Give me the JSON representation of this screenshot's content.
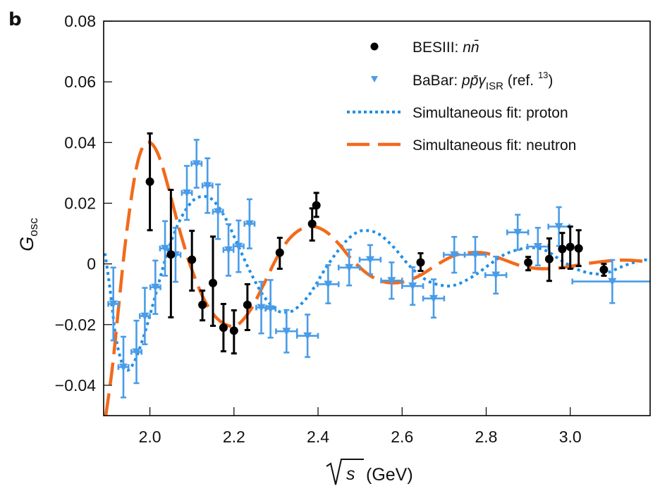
{
  "chart_data": {
    "type": "scatter",
    "panel_label": "b",
    "title": "",
    "xlabel": "√s (GeV)",
    "xlabel_parts": {
      "sqrt_symbol": "s",
      "unit": "(GeV)"
    },
    "ylabel": "G_osc",
    "ylabel_parts": {
      "main": "G",
      "sub": "osc"
    },
    "xlim": [
      1.89,
      3.19
    ],
    "ylim": [
      -0.05,
      0.08
    ],
    "xticks": [
      2.0,
      2.2,
      2.4,
      2.6,
      2.8,
      3.0
    ],
    "xtick_labels": [
      "2.0",
      "2.2",
      "2.4",
      "2.6",
      "2.8",
      "3.0"
    ],
    "yticks": [
      0.08,
      0.06,
      0.04,
      0.02,
      0,
      -0.02,
      -0.04
    ],
    "ytick_labels": [
      "0.08",
      "0.06",
      "0.04",
      "0.02",
      "0",
      "−0.02",
      "−0.04"
    ],
    "grid": false,
    "legend_position": "top-right",
    "colors": {
      "besiii": "#000000",
      "babar": "#4a9ce8",
      "proton_fit": "#1e8fe6",
      "neutron_fit": "#f26a1b"
    },
    "legend": [
      {
        "key": "besiii",
        "label": "BESIII: ",
        "italic": "nn̄",
        "marker": "circle"
      },
      {
        "key": "babar",
        "label": "BaBar: ",
        "italic": "pp̄γ",
        "sub": "ISR",
        "suffix": " (ref. ",
        "sup": "13",
        "suffix2": ")",
        "marker": "triangle-down"
      },
      {
        "key": "proton_fit",
        "label": "Simultaneous fit: proton",
        "marker": "dotted-line"
      },
      {
        "key": "neutron_fit",
        "label": "Simultaneous fit: neutron",
        "marker": "dashed-line"
      }
    ],
    "series": [
      {
        "name": "BESIII: nn̄",
        "kind": "points",
        "marker": "circle",
        "points": [
          {
            "x": 2.0,
            "y": 0.0271,
            "yerr_hi": 0.043,
            "yerr_lo": 0.0111
          },
          {
            "x": 2.05,
            "y": 0.0031,
            "yerr_hi": 0.0244,
            "yerr_lo": -0.0176
          },
          {
            "x": 2.1,
            "y": 0.0014,
            "yerr_hi": 0.0109,
            "yerr_lo": -0.0088
          },
          {
            "x": 2.125,
            "y": -0.0135,
            "yerr_hi": -0.0088,
            "yerr_lo": -0.0186
          },
          {
            "x": 2.15,
            "y": -0.0063,
            "yerr_hi": 0.009,
            "yerr_lo": -0.0204
          },
          {
            "x": 2.175,
            "y": -0.021,
            "yerr_hi": -0.0132,
            "yerr_lo": -0.0288
          },
          {
            "x": 2.2,
            "y": -0.022,
            "yerr_hi": -0.0153,
            "yerr_lo": -0.0295
          },
          {
            "x": 2.232,
            "y": -0.0135,
            "yerr_hi": -0.0067,
            "yerr_lo": -0.0218
          },
          {
            "x": 2.309,
            "y": 0.0037,
            "yerr_hi": 0.0086,
            "yerr_lo": -0.0016
          },
          {
            "x": 2.386,
            "y": 0.0132,
            "yerr_hi": 0.0183,
            "yerr_lo": 0.0077
          },
          {
            "x": 2.396,
            "y": 0.0193,
            "yerr_hi": 0.0234,
            "yerr_lo": 0.0155
          },
          {
            "x": 2.644,
            "y": 0.0005,
            "yerr_hi": 0.0035,
            "yerr_lo": -0.0023
          },
          {
            "x": 2.9,
            "y": 0.0005,
            "yerr_hi": 0.0023,
            "yerr_lo": -0.0021
          },
          {
            "x": 2.95,
            "y": 0.0016,
            "yerr_hi": 0.0084,
            "yerr_lo": -0.0056
          },
          {
            "x": 2.981,
            "y": 0.0049,
            "yerr_hi": 0.0102,
            "yerr_lo": -0.0014
          },
          {
            "x": 3.0,
            "y": 0.0056,
            "yerr_hi": 0.0123,
            "yerr_lo": -0.0016
          },
          {
            "x": 3.02,
            "y": 0.0051,
            "yerr_hi": 0.0111,
            "yerr_lo": -0.0007
          },
          {
            "x": 3.08,
            "y": -0.0019,
            "yerr_hi": 0.0,
            "yerr_lo": -0.0039
          }
        ]
      },
      {
        "name": "BaBar: pp̄γISR (ref. 13)",
        "kind": "points",
        "marker": "triangle-down",
        "points": [
          {
            "x": 1.913,
            "y": -0.0132,
            "xerr": 0.012,
            "yerr": 0.012
          },
          {
            "x": 1.937,
            "y": -0.034,
            "xerr": 0.012,
            "yerr": 0.01
          },
          {
            "x": 1.968,
            "y": -0.029,
            "xerr": 0.012,
            "yerr": 0.0103
          },
          {
            "x": 1.988,
            "y": -0.0172,
            "xerr": 0.012,
            "yerr": 0.0093
          },
          {
            "x": 2.013,
            "y": -0.0077,
            "xerr": 0.012,
            "yerr": 0.0088
          },
          {
            "x": 2.036,
            "y": 0.0051,
            "xerr": 0.012,
            "yerr": 0.009
          },
          {
            "x": 2.061,
            "y": 0.003,
            "xerr": 0.012,
            "yerr": 0.0089
          },
          {
            "x": 2.088,
            "y": 0.0234,
            "xerr": 0.012,
            "yerr": 0.0089
          },
          {
            "x": 2.111,
            "y": 0.033,
            "xerr": 0.012,
            "yerr": 0.0079
          },
          {
            "x": 2.137,
            "y": 0.0258,
            "xerr": 0.012,
            "yerr": 0.009
          },
          {
            "x": 2.162,
            "y": 0.0172,
            "xerr": 0.012,
            "yerr": 0.009
          },
          {
            "x": 2.187,
            "y": 0.0046,
            "xerr": 0.012,
            "yerr": 0.0085
          },
          {
            "x": 2.211,
            "y": 0.0058,
            "xerr": 0.012,
            "yerr": 0.0085
          },
          {
            "x": 2.237,
            "y": 0.0132,
            "xerr": 0.012,
            "yerr": 0.0081
          },
          {
            "x": 2.265,
            "y": -0.0144,
            "xerr": 0.012,
            "yerr": 0.0085
          },
          {
            "x": 2.287,
            "y": -0.0148,
            "xerr": 0.012,
            "yerr": 0.0095
          },
          {
            "x": 2.325,
            "y": -0.0222,
            "xerr": 0.025,
            "yerr": 0.007
          },
          {
            "x": 2.375,
            "y": -0.0237,
            "xerr": 0.025,
            "yerr": 0.007
          },
          {
            "x": 2.424,
            "y": -0.0067,
            "xerr": 0.025,
            "yerr": 0.0063
          },
          {
            "x": 2.474,
            "y": -0.0012,
            "xerr": 0.025,
            "yerr": 0.0059
          },
          {
            "x": 2.524,
            "y": 0.0014,
            "xerr": 0.025,
            "yerr": 0.0048
          },
          {
            "x": 2.575,
            "y": -0.0055,
            "xerr": 0.025,
            "yerr": 0.006
          },
          {
            "x": 2.625,
            "y": -0.0073,
            "xerr": 0.025,
            "yerr": 0.0062
          },
          {
            "x": 2.675,
            "y": -0.0114,
            "xerr": 0.025,
            "yerr": 0.0063
          },
          {
            "x": 2.724,
            "y": 0.003,
            "xerr": 0.025,
            "yerr": 0.0059
          },
          {
            "x": 2.774,
            "y": 0.003,
            "xerr": 0.025,
            "yerr": 0.0059
          },
          {
            "x": 2.823,
            "y": -0.0037,
            "xerr": 0.025,
            "yerr": 0.0061
          },
          {
            "x": 2.875,
            "y": 0.0104,
            "xerr": 0.025,
            "yerr": 0.0058
          },
          {
            "x": 2.923,
            "y": 0.0057,
            "xerr": 0.025,
            "yerr": 0.0062
          },
          {
            "x": 2.973,
            "y": 0.0123,
            "xerr": 0.025,
            "yerr": 0.0064
          },
          {
            "x": 3.1,
            "y": -0.0058,
            "xerr": 0.095,
            "yerr": 0.0071
          }
        ]
      },
      {
        "name": "Simultaneous fit: proton",
        "kind": "line",
        "style": "dotted",
        "x": [
          1.893,
          1.905,
          1.92,
          1.94,
          1.96,
          1.985,
          2.01,
          2.04,
          2.07,
          2.1,
          2.125,
          2.15,
          2.18,
          2.21,
          2.24,
          2.27,
          2.3,
          2.32,
          2.345,
          2.38,
          2.42,
          2.46,
          2.49,
          2.515,
          2.545,
          2.58,
          2.62,
          2.66,
          2.7,
          2.73,
          2.77,
          2.81,
          2.85,
          2.9,
          2.94,
          2.98,
          3.02,
          3.06,
          3.09,
          3.13,
          3.17,
          3.185
        ],
        "y": [
          0.0035,
          -0.008,
          -0.025,
          -0.0345,
          -0.033,
          -0.024,
          -0.012,
          0.003,
          0.014,
          0.0205,
          0.0222,
          0.021,
          0.015,
          0.006,
          -0.003,
          -0.0105,
          -0.015,
          -0.016,
          -0.015,
          -0.01,
          -0.001,
          0.0065,
          0.0102,
          0.011,
          0.0098,
          0.0055,
          -0.001,
          -0.0055,
          -0.0072,
          -0.0068,
          -0.004,
          0.0,
          0.0035,
          0.0053,
          0.0045,
          0.001,
          -0.002,
          -0.0033,
          -0.0028,
          -0.0005,
          0.0012,
          0.0012
        ]
      },
      {
        "name": "Simultaneous fit: neutron",
        "kind": "line",
        "style": "dashed",
        "x": [
          1.895,
          1.91,
          1.925,
          1.94,
          1.955,
          1.97,
          1.985,
          2.0,
          2.015,
          2.03,
          2.05,
          2.075,
          2.1,
          2.13,
          2.16,
          2.19,
          2.21,
          2.24,
          2.27,
          2.3,
          2.33,
          2.36,
          2.39,
          2.42,
          2.45,
          2.48,
          2.52,
          2.56,
          2.6,
          2.64,
          2.68,
          2.72,
          2.76,
          2.8,
          2.84,
          2.88,
          2.92,
          2.96,
          3.0,
          3.05,
          3.1,
          3.14,
          3.185
        ],
        "y": [
          -0.05,
          -0.035,
          -0.015,
          0.005,
          0.021,
          0.033,
          0.039,
          0.04,
          0.0375,
          0.032,
          0.022,
          0.009,
          -0.002,
          -0.012,
          -0.018,
          -0.0205,
          -0.02,
          -0.015,
          -0.007,
          0.0015,
          0.008,
          0.0115,
          0.0123,
          0.0105,
          0.0065,
          0.0015,
          -0.0035,
          -0.006,
          -0.006,
          -0.004,
          -0.0005,
          0.0025,
          0.0037,
          0.0035,
          0.0015,
          -0.0005,
          -0.0015,
          -0.0015,
          -0.0008,
          0.0003,
          0.0011,
          0.0012,
          0.0007
        ]
      }
    ]
  }
}
